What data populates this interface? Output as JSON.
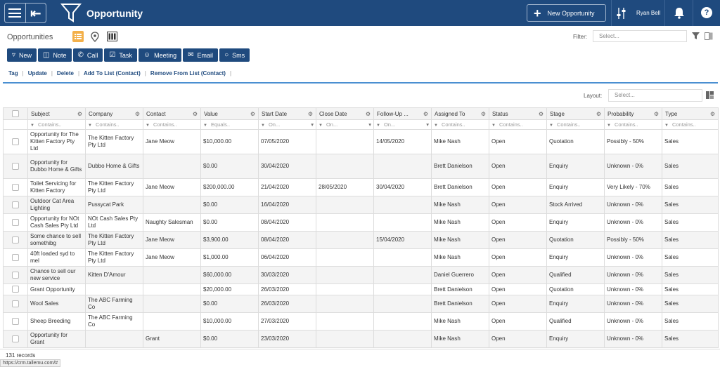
{
  "app": {
    "title": "Opportunity",
    "new_button": "New Opportunity",
    "user_name": "Ryan Bell"
  },
  "subbar": {
    "title": "Opportunities",
    "filter_label": "Filter:",
    "filter_placeholder": "Select..."
  },
  "actions": [
    {
      "label": "New",
      "icon": "funnel-icon"
    },
    {
      "label": "Note",
      "icon": "note-icon"
    },
    {
      "label": "Call",
      "icon": "phone-icon"
    },
    {
      "label": "Task",
      "icon": "task-icon"
    },
    {
      "label": "Meeting",
      "icon": "meeting-icon"
    },
    {
      "label": "Email",
      "icon": "email-icon"
    },
    {
      "label": "Sms",
      "icon": "sms-icon"
    }
  ],
  "links": [
    "Tag",
    "Update",
    "Delete",
    "Add To List (Contact)",
    "Remove From List (Contact)"
  ],
  "layout": {
    "label": "Layout:",
    "placeholder": "Select..."
  },
  "columns": [
    "Subject",
    "Company",
    "Contact",
    "Value",
    "Start Date",
    "Close Date",
    "Follow-Up ...",
    "Assigned To",
    "Status",
    "Stage",
    "Probability",
    "Type"
  ],
  "filters": [
    "Contains..",
    "Contains..",
    "Contains..",
    "Equals..",
    "On...",
    "On...",
    "On...",
    "Contains..",
    "Contains..",
    "Contains..",
    "Contains..",
    "Contains.."
  ],
  "rows": [
    [
      "Opportunity for The Kitten Factory Pty Ltd",
      "The Kitten Factory Pty Ltd",
      "Jane Meow",
      "$10,000.00",
      "07/05/2020",
      "",
      "14/05/2020",
      "Mike Nash",
      "Open",
      "Quotation",
      "Possibly - 50%",
      "Sales"
    ],
    [
      "Opportunity for Dubbo Home & Gifts",
      "Dubbo Home & Gifts",
      "",
      "$0.00",
      "30/04/2020",
      "",
      "",
      "Brett Danielson",
      "Open",
      "Enquiry",
      "Unknown - 0%",
      "Sales"
    ],
    [
      "Toilet Servicing for Kitten Factory",
      "The Kitten Factory Pty Ltd",
      "Jane Meow",
      "$200,000.00",
      "21/04/2020",
      "28/05/2020",
      "30/04/2020",
      "Brett Danielson",
      "Open",
      "Enquiry",
      "Very Likely - 70%",
      "Sales"
    ],
    [
      "Outdoor Cat Area Lighting",
      "Pussycat Park",
      "",
      "$0.00",
      "16/04/2020",
      "",
      "",
      "Mike Nash",
      "Open",
      "Stock Arrived",
      "Unknown - 0%",
      "Sales"
    ],
    [
      "Opportunity for NOt Cash Sales Pty Ltd",
      "NOt Cash Sales Pty Ltd",
      "Naughty Salesman",
      "$0.00",
      "08/04/2020",
      "",
      "",
      "Mike Nash",
      "Open",
      "Enquiry",
      "Unknown - 0%",
      "Sales"
    ],
    [
      "Some chance to sell somethibg",
      "The Kitten Factory Pty Ltd",
      "Jane Meow",
      "$3,900.00",
      "08/04/2020",
      "",
      "15/04/2020",
      "Mike Nash",
      "Open",
      "Quotation",
      "Possibly - 50%",
      "Sales"
    ],
    [
      "40ft loaded syd to mel",
      "The Kitten Factory Pty Ltd",
      "Jane Meow",
      "$1,000.00",
      "06/04/2020",
      "",
      "",
      "Mike Nash",
      "Open",
      "Enquiry",
      "Unknown - 0%",
      "Sales"
    ],
    [
      "Chance to sell our new service",
      "Kitten D'Amour",
      "",
      "$60,000.00",
      "30/03/2020",
      "",
      "",
      "Daniel Guerrero",
      "Open",
      "Qualified",
      "Unknown - 0%",
      "Sales"
    ],
    [
      "Grant Opportunity",
      "",
      "",
      "$20,000.00",
      "26/03/2020",
      "",
      "",
      "Brett Danielson",
      "Open",
      "Quotation",
      "Unknown - 0%",
      "Sales"
    ],
    [
      "Wool Sales",
      "The ABC Farming Co",
      "",
      "$0.00",
      "26/03/2020",
      "",
      "",
      "Brett Danielson",
      "Open",
      "Enquiry",
      "Unknown - 0%",
      "Sales"
    ],
    [
      "Sheep Breeding",
      "The ABC Farming Co",
      "",
      "$10,000.00",
      "27/03/2020",
      "",
      "",
      "Mike Nash",
      "Open",
      "Qualified",
      "Unknown - 0%",
      "Sales"
    ],
    [
      "Opportunity for Grant",
      "",
      "Grant",
      "$0.00",
      "23/03/2020",
      "",
      "",
      "Mike Nash",
      "Open",
      "Enquiry",
      "Unknown - 0%",
      "Sales"
    ]
  ],
  "footer": {
    "records": "131 records",
    "url": "https://crm.tallemu.com/#"
  },
  "colors": {
    "primary": "#1f4a7e",
    "accent": "#f3b04a",
    "link": "#1f4a7e",
    "panel_border": "#4a8fd1"
  }
}
